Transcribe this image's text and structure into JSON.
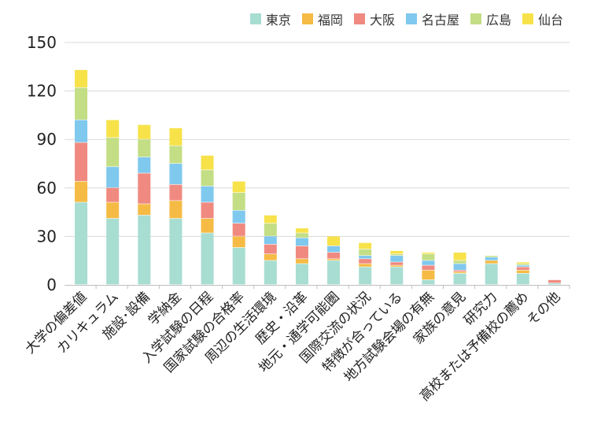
{
  "chart_data": {
    "type": "bar",
    "stacked": true,
    "categories": [
      "大学の偏差値",
      "カリキュラム",
      "施設･設備",
      "学納金",
      "入学試験の日程",
      "国家試験の合格率",
      "周辺の生活環境",
      "歴史・沿革",
      "地元・通学可能圏",
      "国際交流の状況",
      "特徴が合っている",
      "地方試験会場の有無",
      "家族の意見",
      "研究力",
      "高校または予備校の薦め",
      "その他"
    ],
    "series": [
      {
        "name": "東京",
        "color": "#a8ddd2",
        "values": [
          51,
          41,
          43,
          41,
          32,
          23,
          15,
          13,
          15,
          11,
          11,
          3,
          7,
          13,
          7,
          1
        ]
      },
      {
        "name": "福岡",
        "color": "#f5bb45",
        "values": [
          13,
          10,
          7,
          11,
          9,
          7,
          4,
          3,
          1,
          2,
          1,
          6,
          1,
          2,
          2,
          0
        ]
      },
      {
        "name": "大阪",
        "color": "#f08a80",
        "values": [
          24,
          9,
          19,
          10,
          10,
          8,
          6,
          8,
          4,
          3,
          2,
          3,
          1,
          0,
          2,
          2
        ]
      },
      {
        "name": "名古屋",
        "color": "#7fc8ee",
        "values": [
          14,
          13,
          10,
          13,
          10,
          8,
          5,
          5,
          4,
          2,
          4,
          3,
          4,
          2,
          1,
          0
        ]
      },
      {
        "name": "広島",
        "color": "#c3de85",
        "values": [
          20,
          18,
          11,
          11,
          10,
          11,
          8,
          3,
          0,
          4,
          1,
          4,
          2,
          1,
          1,
          0
        ]
      },
      {
        "name": "仙台",
        "color": "#f7e24a",
        "values": [
          11,
          11,
          9,
          11,
          9,
          7,
          5,
          3,
          6,
          4,
          2,
          1,
          5,
          0,
          1,
          0
        ]
      }
    ],
    "ylim": [
      0,
      150
    ],
    "yticks": [
      0,
      30,
      60,
      90,
      120,
      150
    ],
    "grid": true,
    "legend_position": "top-right"
  }
}
